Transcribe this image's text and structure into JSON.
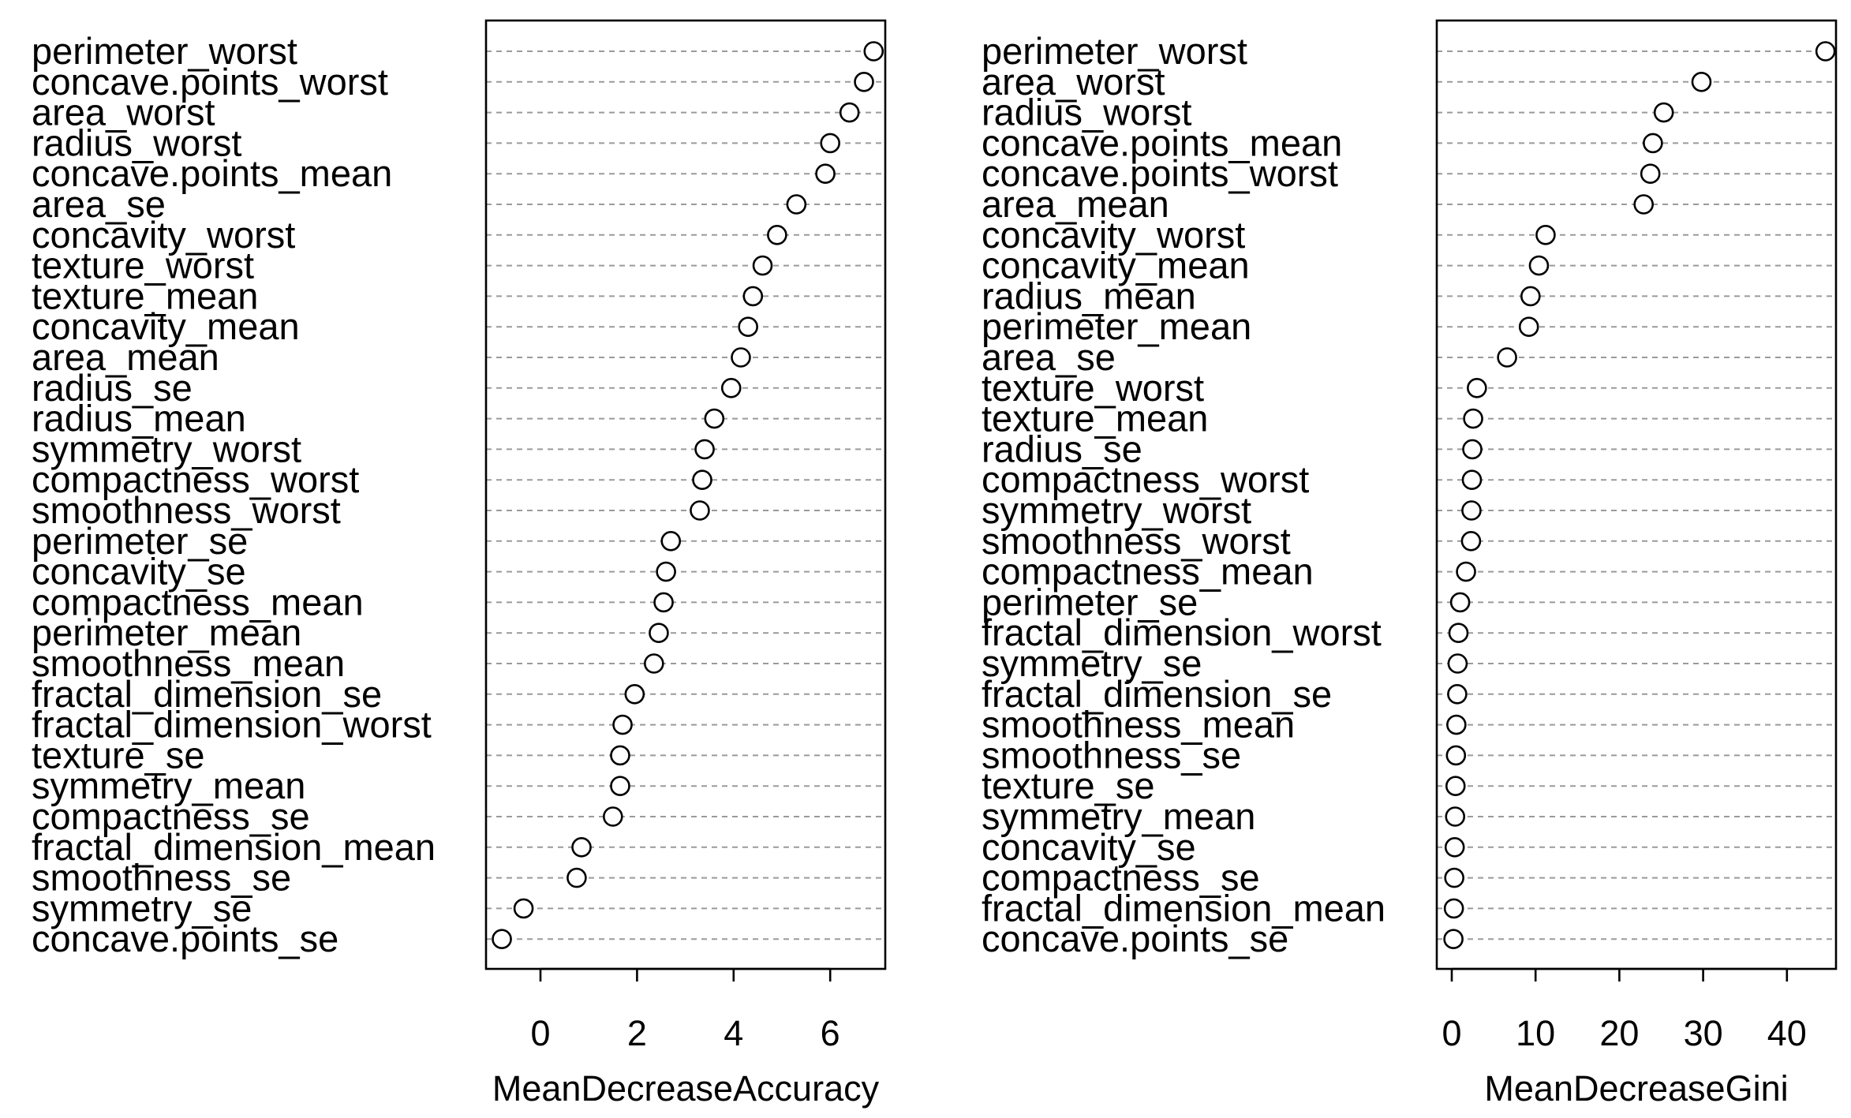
{
  "chart_data": [
    {
      "type": "scatter",
      "title": "",
      "xlabel": "MeanDecreaseAccuracy",
      "ylabel": "",
      "xlim": [
        -1.1,
        7.2
      ],
      "xticks": [
        "0",
        "2",
        "4",
        "6"
      ],
      "grid": "dotted horizontal lines",
      "categories": [
        "perimeter_worst",
        "concave.points_worst",
        "area_worst",
        "radius_worst",
        "concave.points_mean",
        "area_se",
        "concavity_worst",
        "texture_worst",
        "texture_mean",
        "concavity_mean",
        "area_mean",
        "radius_se",
        "radius_mean",
        "symmetry_worst",
        "compactness_worst",
        "smoothness_worst",
        "perimeter_se",
        "concavity_se",
        "compactness_mean",
        "perimeter_mean",
        "smoothness_mean",
        "fractal_dimension_se",
        "fractal_dimension_worst",
        "texture_se",
        "symmetry_mean",
        "compactness_se",
        "fractal_dimension_mean",
        "smoothness_se",
        "symmetry_se",
        "concave.points_se"
      ],
      "values": [
        6.9,
        6.7,
        6.4,
        6.0,
        5.9,
        5.3,
        4.9,
        4.6,
        4.4,
        4.3,
        4.15,
        3.95,
        3.6,
        3.4,
        3.35,
        3.3,
        2.7,
        2.6,
        2.55,
        2.45,
        2.35,
        1.95,
        1.7,
        1.65,
        1.65,
        1.5,
        0.85,
        0.75,
        -0.35,
        -0.8
      ]
    },
    {
      "type": "scatter",
      "title": "",
      "xlabel": "MeanDecreaseGini",
      "ylabel": "",
      "xlim": [
        -1.8,
        46.2
      ],
      "xticks": [
        "0",
        "10",
        "20",
        "30",
        "40"
      ],
      "grid": "dotted horizontal lines",
      "categories": [
        "perimeter_worst",
        "area_worst",
        "radius_worst",
        "concave.points_mean",
        "concave.points_worst",
        "area_mean",
        "concavity_worst",
        "concavity_mean",
        "radius_mean",
        "perimeter_mean",
        "area_se",
        "texture_worst",
        "texture_mean",
        "radius_se",
        "compactness_worst",
        "symmetry_worst",
        "smoothness_worst",
        "compactness_mean",
        "perimeter_se",
        "fractal_dimension_worst",
        "symmetry_se",
        "fractal_dimension_se",
        "smoothness_mean",
        "smoothness_se",
        "texture_se",
        "symmetry_mean",
        "concavity_se",
        "compactness_se",
        "fractal_dimension_mean",
        "concave.points_se"
      ],
      "values": [
        44.6,
        29.8,
        25.3,
        24.0,
        23.7,
        22.9,
        11.2,
        10.4,
        9.4,
        9.2,
        6.6,
        3.0,
        2.55,
        2.45,
        2.4,
        2.35,
        2.3,
        1.7,
        1.0,
        0.8,
        0.7,
        0.65,
        0.55,
        0.5,
        0.45,
        0.4,
        0.35,
        0.3,
        0.25,
        0.2
      ]
    }
  ]
}
